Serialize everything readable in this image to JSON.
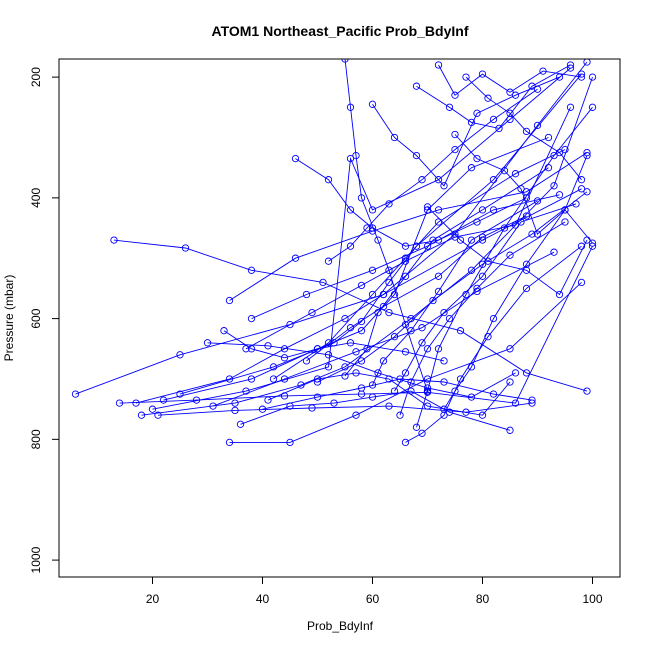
{
  "chart_data": {
    "type": "line",
    "title": "ATOM1 Northeast_Pacific Prob_BdyInf",
    "xlabel": "Prob_BdyInf",
    "ylabel": "Pressure (mbar)",
    "xlim": [
      3,
      105
    ],
    "ylim": [
      1028,
      170
    ],
    "y_inverted": true,
    "x_ticks": [
      20,
      40,
      60,
      80,
      100
    ],
    "y_ticks": [
      200,
      400,
      600,
      800,
      1000
    ],
    "grid": false,
    "line_color": "#0000ff",
    "marker": "open-circle",
    "series": [
      {
        "x": [
          13,
          26,
          38,
          51,
          63,
          76,
          88,
          99
        ],
        "y": [
          470,
          483,
          520,
          540,
          590,
          620,
          690,
          720
        ]
      },
      {
        "x": [
          6,
          25,
          45,
          62,
          80,
          98
        ],
        "y": [
          725,
          660,
          610,
          560,
          470,
          385
        ]
      },
      {
        "x": [
          18,
          35,
          47,
          55,
          67,
          78,
          93,
          100
        ],
        "y": [
          760,
          740,
          710,
          680,
          600,
          520,
          380,
          200
        ]
      },
      {
        "x": [
          20,
          37,
          52,
          56,
          60,
          72,
          85,
          96
        ],
        "y": [
          750,
          720,
          680,
          335,
          420,
          370,
          270,
          185
        ]
      },
      {
        "x": [
          17,
          34,
          44,
          55,
          62,
          75,
          90,
          99
        ],
        "y": [
          740,
          700,
          650,
          600,
          560,
          460,
          280,
          175
        ]
      },
      {
        "x": [
          22,
          38,
          50,
          58,
          64,
          70,
          78,
          92
        ],
        "y": [
          735,
          700,
          650,
          620,
          560,
          420,
          350,
          300
        ]
      },
      {
        "x": [
          25,
          42,
          53,
          58,
          63,
          68,
          82,
          98
        ],
        "y": [
          725,
          680,
          640,
          605,
          540,
          480,
          370,
          195
        ]
      },
      {
        "x": [
          34,
          45,
          57,
          70,
          85,
          98
        ],
        "y": [
          805,
          805,
          760,
          700,
          650,
          540
        ]
      },
      {
        "x": [
          34,
          46,
          60,
          72,
          88,
          99
        ],
        "y": [
          570,
          500,
          455,
          420,
          390,
          325
        ]
      },
      {
        "x": [
          14,
          28,
          44,
          58,
          70,
          86,
          100
        ],
        "y": [
          740,
          735,
          728,
          725,
          722,
          740,
          480
        ]
      },
      {
        "x": [
          21,
          35,
          49,
          63,
          77,
          89
        ],
        "y": [
          760,
          752,
          748,
          745,
          755,
          740
        ]
      },
      {
        "x": [
          31,
          44,
          57,
          69,
          79,
          93
        ],
        "y": [
          745,
          700,
          655,
          615,
          555,
          490
        ]
      },
      {
        "x": [
          38,
          48,
          60,
          70,
          82,
          94
        ],
        "y": [
          600,
          560,
          520,
          480,
          420,
          395
        ]
      },
      {
        "x": [
          37,
          49,
          58,
          66,
          75,
          86,
          96
        ],
        "y": [
          650,
          590,
          545,
          505,
          465,
          445,
          250
        ]
      },
      {
        "x": [
          42,
          52,
          60,
          66,
          72,
          86,
          95
        ],
        "y": [
          700,
          640,
          560,
          500,
          440,
          360,
          320
        ]
      },
      {
        "x": [
          48,
          56,
          62,
          72,
          80,
          88
        ],
        "y": [
          670,
          615,
          580,
          530,
          465,
          430
        ]
      },
      {
        "x": [
          50,
          58,
          64,
          71,
          80,
          89,
          99
        ],
        "y": [
          705,
          670,
          630,
          570,
          510,
          460,
          390
        ]
      },
      {
        "x": [
          55,
          59,
          61,
          66,
          71,
          80,
          92
        ],
        "y": [
          695,
          650,
          590,
          530,
          470,
          420,
          350
        ]
      },
      {
        "x": [
          60,
          62,
          67,
          72,
          78,
          90
        ],
        "y": [
          710,
          670,
          620,
          555,
          470,
          405
        ]
      },
      {
        "x": [
          64,
          66,
          69,
          73,
          80,
          87,
          97
        ],
        "y": [
          720,
          690,
          640,
          590,
          530,
          440,
          410
        ]
      },
      {
        "x": [
          52,
          56,
          59,
          63,
          69,
          75,
          82,
          90
        ],
        "y": [
          505,
          480,
          450,
          410,
          370,
          320,
          270,
          220
        ]
      },
      {
        "x": [
          46,
          52,
          56,
          60,
          66,
          72,
          79,
          88
        ],
        "y": [
          335,
          370,
          420,
          450,
          480,
          470,
          440,
          400
        ]
      },
      {
        "x": [
          55,
          56,
          57,
          58,
          61,
          63,
          66,
          70
        ],
        "y": [
          170,
          250,
          330,
          400,
          470,
          520,
          610,
          720
        ]
      },
      {
        "x": [
          65,
          67,
          70,
          74,
          79,
          85,
          95
        ],
        "y": [
          760,
          705,
          650,
          600,
          550,
          495,
          440
        ]
      },
      {
        "x": [
          66,
          69,
          73,
          76,
          81,
          88,
          98
        ],
        "y": [
          805,
          790,
          760,
          700,
          630,
          550,
          480
        ]
      },
      {
        "x": [
          68,
          70,
          72,
          77,
          84,
          93,
          100
        ],
        "y": [
          780,
          720,
          650,
          560,
          450,
          330,
          250
        ]
      },
      {
        "x": [
          73,
          75,
          78,
          82,
          88,
          95,
          99
        ],
        "y": [
          750,
          720,
          680,
          600,
          510,
          420,
          330
        ]
      },
      {
        "x": [
          36,
          45,
          53,
          60,
          67,
          74,
          85
        ],
        "y": [
          775,
          745,
          740,
          730,
          720,
          755,
          785
        ]
      },
      {
        "x": [
          40,
          50,
          58,
          65,
          73,
          82,
          89
        ],
        "y": [
          750,
          730,
          715,
          700,
          705,
          725,
          735
        ]
      },
      {
        "x": [
          41,
          50,
          57,
          63,
          70,
          80,
          85
        ],
        "y": [
          735,
          700,
          690,
          700,
          745,
          760,
          705
        ]
      },
      {
        "x": [
          30,
          41,
          52,
          61,
          70,
          78,
          86
        ],
        "y": [
          640,
          645,
          660,
          690,
          715,
          730,
          690
        ]
      },
      {
        "x": [
          33,
          38,
          44,
          50,
          56,
          66,
          73
        ],
        "y": [
          620,
          650,
          665,
          650,
          640,
          655,
          670
        ]
      },
      {
        "x": [
          70,
          76,
          81,
          88,
          94,
          99
        ],
        "y": [
          415,
          470,
          505,
          520,
          560,
          470
        ]
      },
      {
        "x": [
          75,
          79,
          84,
          87,
          90,
          95,
          100
        ],
        "y": [
          295,
          335,
          355,
          385,
          460,
          420,
          475
        ]
      },
      {
        "x": [
          77,
          81,
          85,
          88,
          94,
          98
        ],
        "y": [
          200,
          235,
          260,
          290,
          325,
          370
        ]
      },
      {
        "x": [
          68,
          74,
          78,
          83,
          89,
          96
        ],
        "y": [
          215,
          250,
          275,
          285,
          215,
          180
        ]
      },
      {
        "x": [
          72,
          75,
          80,
          85,
          91,
          98
        ],
        "y": [
          180,
          230,
          195,
          225,
          190,
          200
        ]
      },
      {
        "x": [
          60,
          64,
          68,
          73,
          79,
          86,
          94
        ],
        "y": [
          245,
          300,
          330,
          380,
          260,
          230,
          200
        ]
      }
    ]
  }
}
